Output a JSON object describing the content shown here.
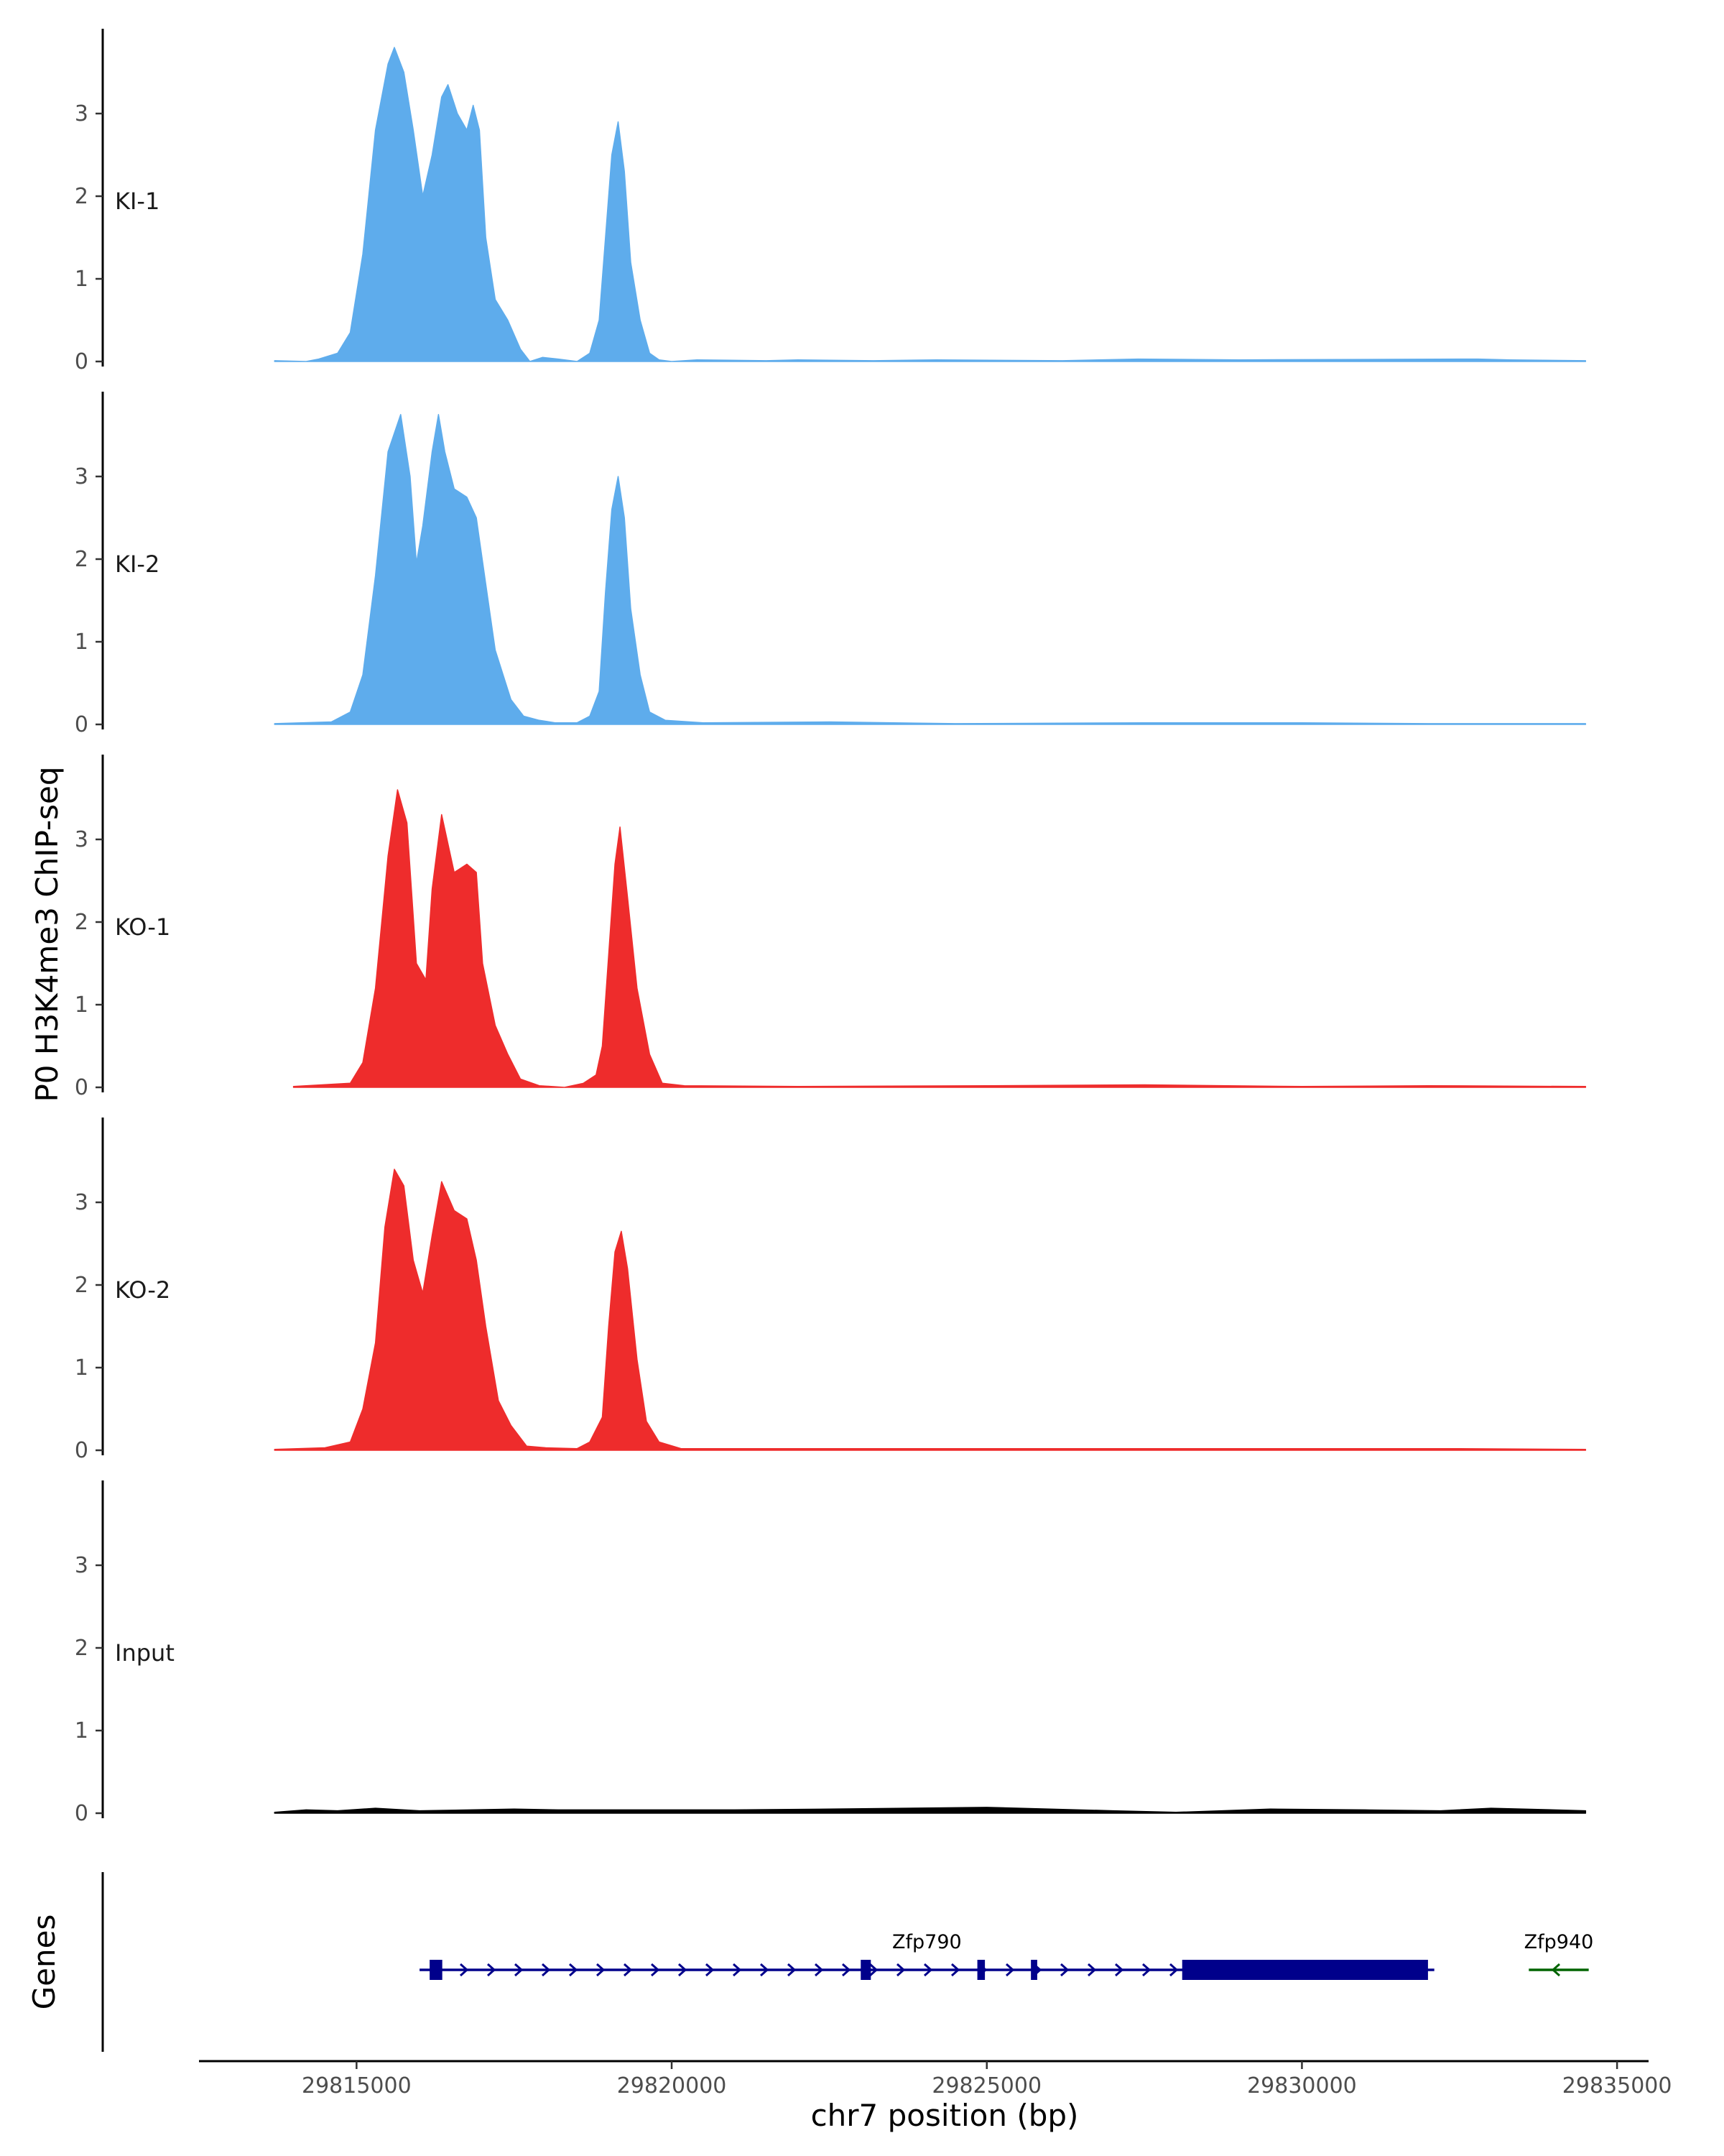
{
  "chart_data": {
    "type": "area",
    "ylabel": "P0 H3K4me3 ChIP-seq",
    "xlabel": "chr7 position (bp)",
    "xlim": [
      29812500,
      29835500
    ],
    "ylim": [
      0,
      4
    ],
    "yticks": [
      "0",
      "1",
      "2",
      "3"
    ],
    "xticks": [
      {
        "value": 29815000,
        "label": "29815000"
      },
      {
        "value": 29820000,
        "label": "29820000"
      },
      {
        "value": 29825000,
        "label": "29825000"
      },
      {
        "value": 29830000,
        "label": "29830000"
      },
      {
        "value": 29835000,
        "label": "29835000"
      }
    ],
    "grid": false,
    "legend": "none",
    "tracks": [
      {
        "name": "KI-1",
        "color": "#5eacec",
        "points": [
          [
            29813700,
            0.01
          ],
          [
            29814200,
            0
          ],
          [
            29814400,
            0.03
          ],
          [
            29814700,
            0.1
          ],
          [
            29814900,
            0.35
          ],
          [
            29815100,
            1.3
          ],
          [
            29815300,
            2.8
          ],
          [
            29815500,
            3.6
          ],
          [
            29815600,
            3.8
          ],
          [
            29815750,
            3.5
          ],
          [
            29815900,
            2.8
          ],
          [
            29816050,
            2.0
          ],
          [
            29816200,
            2.5
          ],
          [
            29816350,
            3.2
          ],
          [
            29816450,
            3.35
          ],
          [
            29816600,
            3.0
          ],
          [
            29816750,
            2.8
          ],
          [
            29816850,
            3.1
          ],
          [
            29816950,
            2.8
          ],
          [
            29817050,
            1.5
          ],
          [
            29817200,
            0.75
          ],
          [
            29817400,
            0.5
          ],
          [
            29817600,
            0.15
          ],
          [
            29817750,
            0
          ],
          [
            29817950,
            0.05
          ],
          [
            29818200,
            0.03
          ],
          [
            29818500,
            0
          ],
          [
            29818700,
            0.1
          ],
          [
            29818850,
            0.5
          ],
          [
            29818950,
            1.5
          ],
          [
            29819050,
            2.5
          ],
          [
            29819150,
            2.9
          ],
          [
            29819250,
            2.3
          ],
          [
            29819350,
            1.2
          ],
          [
            29819500,
            0.5
          ],
          [
            29819650,
            0.1
          ],
          [
            29819800,
            0.02
          ],
          [
            29820000,
            0
          ],
          [
            29820400,
            0.02
          ],
          [
            29821500,
            0.01
          ],
          [
            29822000,
            0.02
          ],
          [
            29823200,
            0.01
          ],
          [
            29824200,
            0.02
          ],
          [
            29826200,
            0.01
          ],
          [
            29827400,
            0.03
          ],
          [
            29829000,
            0.02
          ],
          [
            29832800,
            0.03
          ],
          [
            29833300,
            0.02
          ],
          [
            29834500,
            0.01
          ]
        ]
      },
      {
        "name": "KI-2",
        "color": "#5eacec",
        "points": [
          [
            29813700,
            0.01
          ],
          [
            29814600,
            0.03
          ],
          [
            29814900,
            0.15
          ],
          [
            29815100,
            0.6
          ],
          [
            29815300,
            1.8
          ],
          [
            29815500,
            3.3
          ],
          [
            29815700,
            3.75
          ],
          [
            29815850,
            3.0
          ],
          [
            29815950,
            1.95
          ],
          [
            29816050,
            2.4
          ],
          [
            29816200,
            3.3
          ],
          [
            29816300,
            3.75
          ],
          [
            29816400,
            3.3
          ],
          [
            29816550,
            2.85
          ],
          [
            29816750,
            2.75
          ],
          [
            29816900,
            2.5
          ],
          [
            29817050,
            1.7
          ],
          [
            29817200,
            0.9
          ],
          [
            29817450,
            0.3
          ],
          [
            29817650,
            0.1
          ],
          [
            29817900,
            0.05
          ],
          [
            29818150,
            0.02
          ],
          [
            29818500,
            0.02
          ],
          [
            29818700,
            0.1
          ],
          [
            29818850,
            0.4
          ],
          [
            29818950,
            1.6
          ],
          [
            29819050,
            2.6
          ],
          [
            29819150,
            3.0
          ],
          [
            29819250,
            2.5
          ],
          [
            29819350,
            1.4
          ],
          [
            29819500,
            0.6
          ],
          [
            29819650,
            0.15
          ],
          [
            29819900,
            0.05
          ],
          [
            29820500,
            0.02
          ],
          [
            29822500,
            0.03
          ],
          [
            29824500,
            0.01
          ],
          [
            29827500,
            0.02
          ],
          [
            29830000,
            0.02
          ],
          [
            29832000,
            0.01
          ],
          [
            29834500,
            0.01
          ]
        ]
      },
      {
        "name": "KO-1",
        "color": "#ee2c2c",
        "points": [
          [
            29814000,
            0.01
          ],
          [
            29814900,
            0.05
          ],
          [
            29815100,
            0.3
          ],
          [
            29815300,
            1.2
          ],
          [
            29815500,
            2.8
          ],
          [
            29815650,
            3.6
          ],
          [
            29815800,
            3.2
          ],
          [
            29815950,
            1.5
          ],
          [
            29816100,
            1.3
          ],
          [
            29816200,
            2.4
          ],
          [
            29816350,
            3.3
          ],
          [
            29816550,
            2.6
          ],
          [
            29816750,
            2.7
          ],
          [
            29816900,
            2.6
          ],
          [
            29817000,
            1.5
          ],
          [
            29817200,
            0.75
          ],
          [
            29817400,
            0.4
          ],
          [
            29817600,
            0.1
          ],
          [
            29817900,
            0.02
          ],
          [
            29818300,
            0
          ],
          [
            29818600,
            0.05
          ],
          [
            29818800,
            0.15
          ],
          [
            29818900,
            0.5
          ],
          [
            29819000,
            1.6
          ],
          [
            29819100,
            2.7
          ],
          [
            29819180,
            3.15
          ],
          [
            29819300,
            2.3
          ],
          [
            29819450,
            1.2
          ],
          [
            29819650,
            0.4
          ],
          [
            29819850,
            0.05
          ],
          [
            29820200,
            0.02
          ],
          [
            29822000,
            0.01
          ],
          [
            29825000,
            0.02
          ],
          [
            29827500,
            0.03
          ],
          [
            29830000,
            0.01
          ],
          [
            29832000,
            0.02
          ],
          [
            29834500,
            0.01
          ]
        ]
      },
      {
        "name": "KO-2",
        "color": "#ee2c2c",
        "points": [
          [
            29813700,
            0.01
          ],
          [
            29814500,
            0.03
          ],
          [
            29814900,
            0.1
          ],
          [
            29815100,
            0.5
          ],
          [
            29815300,
            1.3
          ],
          [
            29815450,
            2.7
          ],
          [
            29815600,
            3.4
          ],
          [
            29815750,
            3.2
          ],
          [
            29815900,
            2.3
          ],
          [
            29816050,
            1.9
          ],
          [
            29816200,
            2.6
          ],
          [
            29816350,
            3.25
          ],
          [
            29816550,
            2.9
          ],
          [
            29816750,
            2.8
          ],
          [
            29816900,
            2.3
          ],
          [
            29817050,
            1.5
          ],
          [
            29817250,
            0.6
          ],
          [
            29817450,
            0.3
          ],
          [
            29817700,
            0.05
          ],
          [
            29818000,
            0.03
          ],
          [
            29818500,
            0.02
          ],
          [
            29818700,
            0.1
          ],
          [
            29818900,
            0.4
          ],
          [
            29819000,
            1.5
          ],
          [
            29819100,
            2.4
          ],
          [
            29819200,
            2.65
          ],
          [
            29819300,
            2.2
          ],
          [
            29819450,
            1.1
          ],
          [
            29819600,
            0.35
          ],
          [
            29819800,
            0.1
          ],
          [
            29820150,
            0.02
          ],
          [
            29822500,
            0.02
          ],
          [
            29825500,
            0.02
          ],
          [
            29828000,
            0.02
          ],
          [
            29832500,
            0.02
          ],
          [
            29834500,
            0.01
          ]
        ]
      },
      {
        "name": "Input",
        "color": "#000000",
        "points": [
          [
            29813700,
            0.01
          ],
          [
            29814200,
            0.04
          ],
          [
            29814700,
            0.03
          ],
          [
            29815300,
            0.06
          ],
          [
            29816000,
            0.03
          ],
          [
            29817500,
            0.05
          ],
          [
            29818200,
            0.04
          ],
          [
            29819500,
            0.04
          ],
          [
            29821000,
            0.04
          ],
          [
            29822500,
            0.05
          ],
          [
            29825000,
            0.07
          ],
          [
            29827000,
            0.03
          ],
          [
            29828000,
            0.01
          ],
          [
            29829500,
            0.05
          ],
          [
            29831000,
            0.04
          ],
          [
            29832200,
            0.03
          ],
          [
            29833000,
            0.06
          ],
          [
            29834000,
            0.04
          ],
          [
            29834500,
            0.03
          ]
        ]
      }
    ],
    "genes_track": {
      "ylabel": "Genes",
      "genes": [
        {
          "name": "Zfp790",
          "color": "#00008b",
          "strand": "+",
          "start": 29816000,
          "end": 29832100,
          "exons": [
            [
              29816160,
              29816360
            ],
            [
              29823000,
              29823160
            ],
            [
              29824850,
              29824970
            ],
            [
              29825700,
              29825800
            ],
            [
              29828100,
              29832000
            ]
          ]
        },
        {
          "name": "Zfp940",
          "color": "#006400",
          "strand": "-",
          "start": 29833600,
          "end": 29834550,
          "exons": []
        }
      ]
    }
  }
}
